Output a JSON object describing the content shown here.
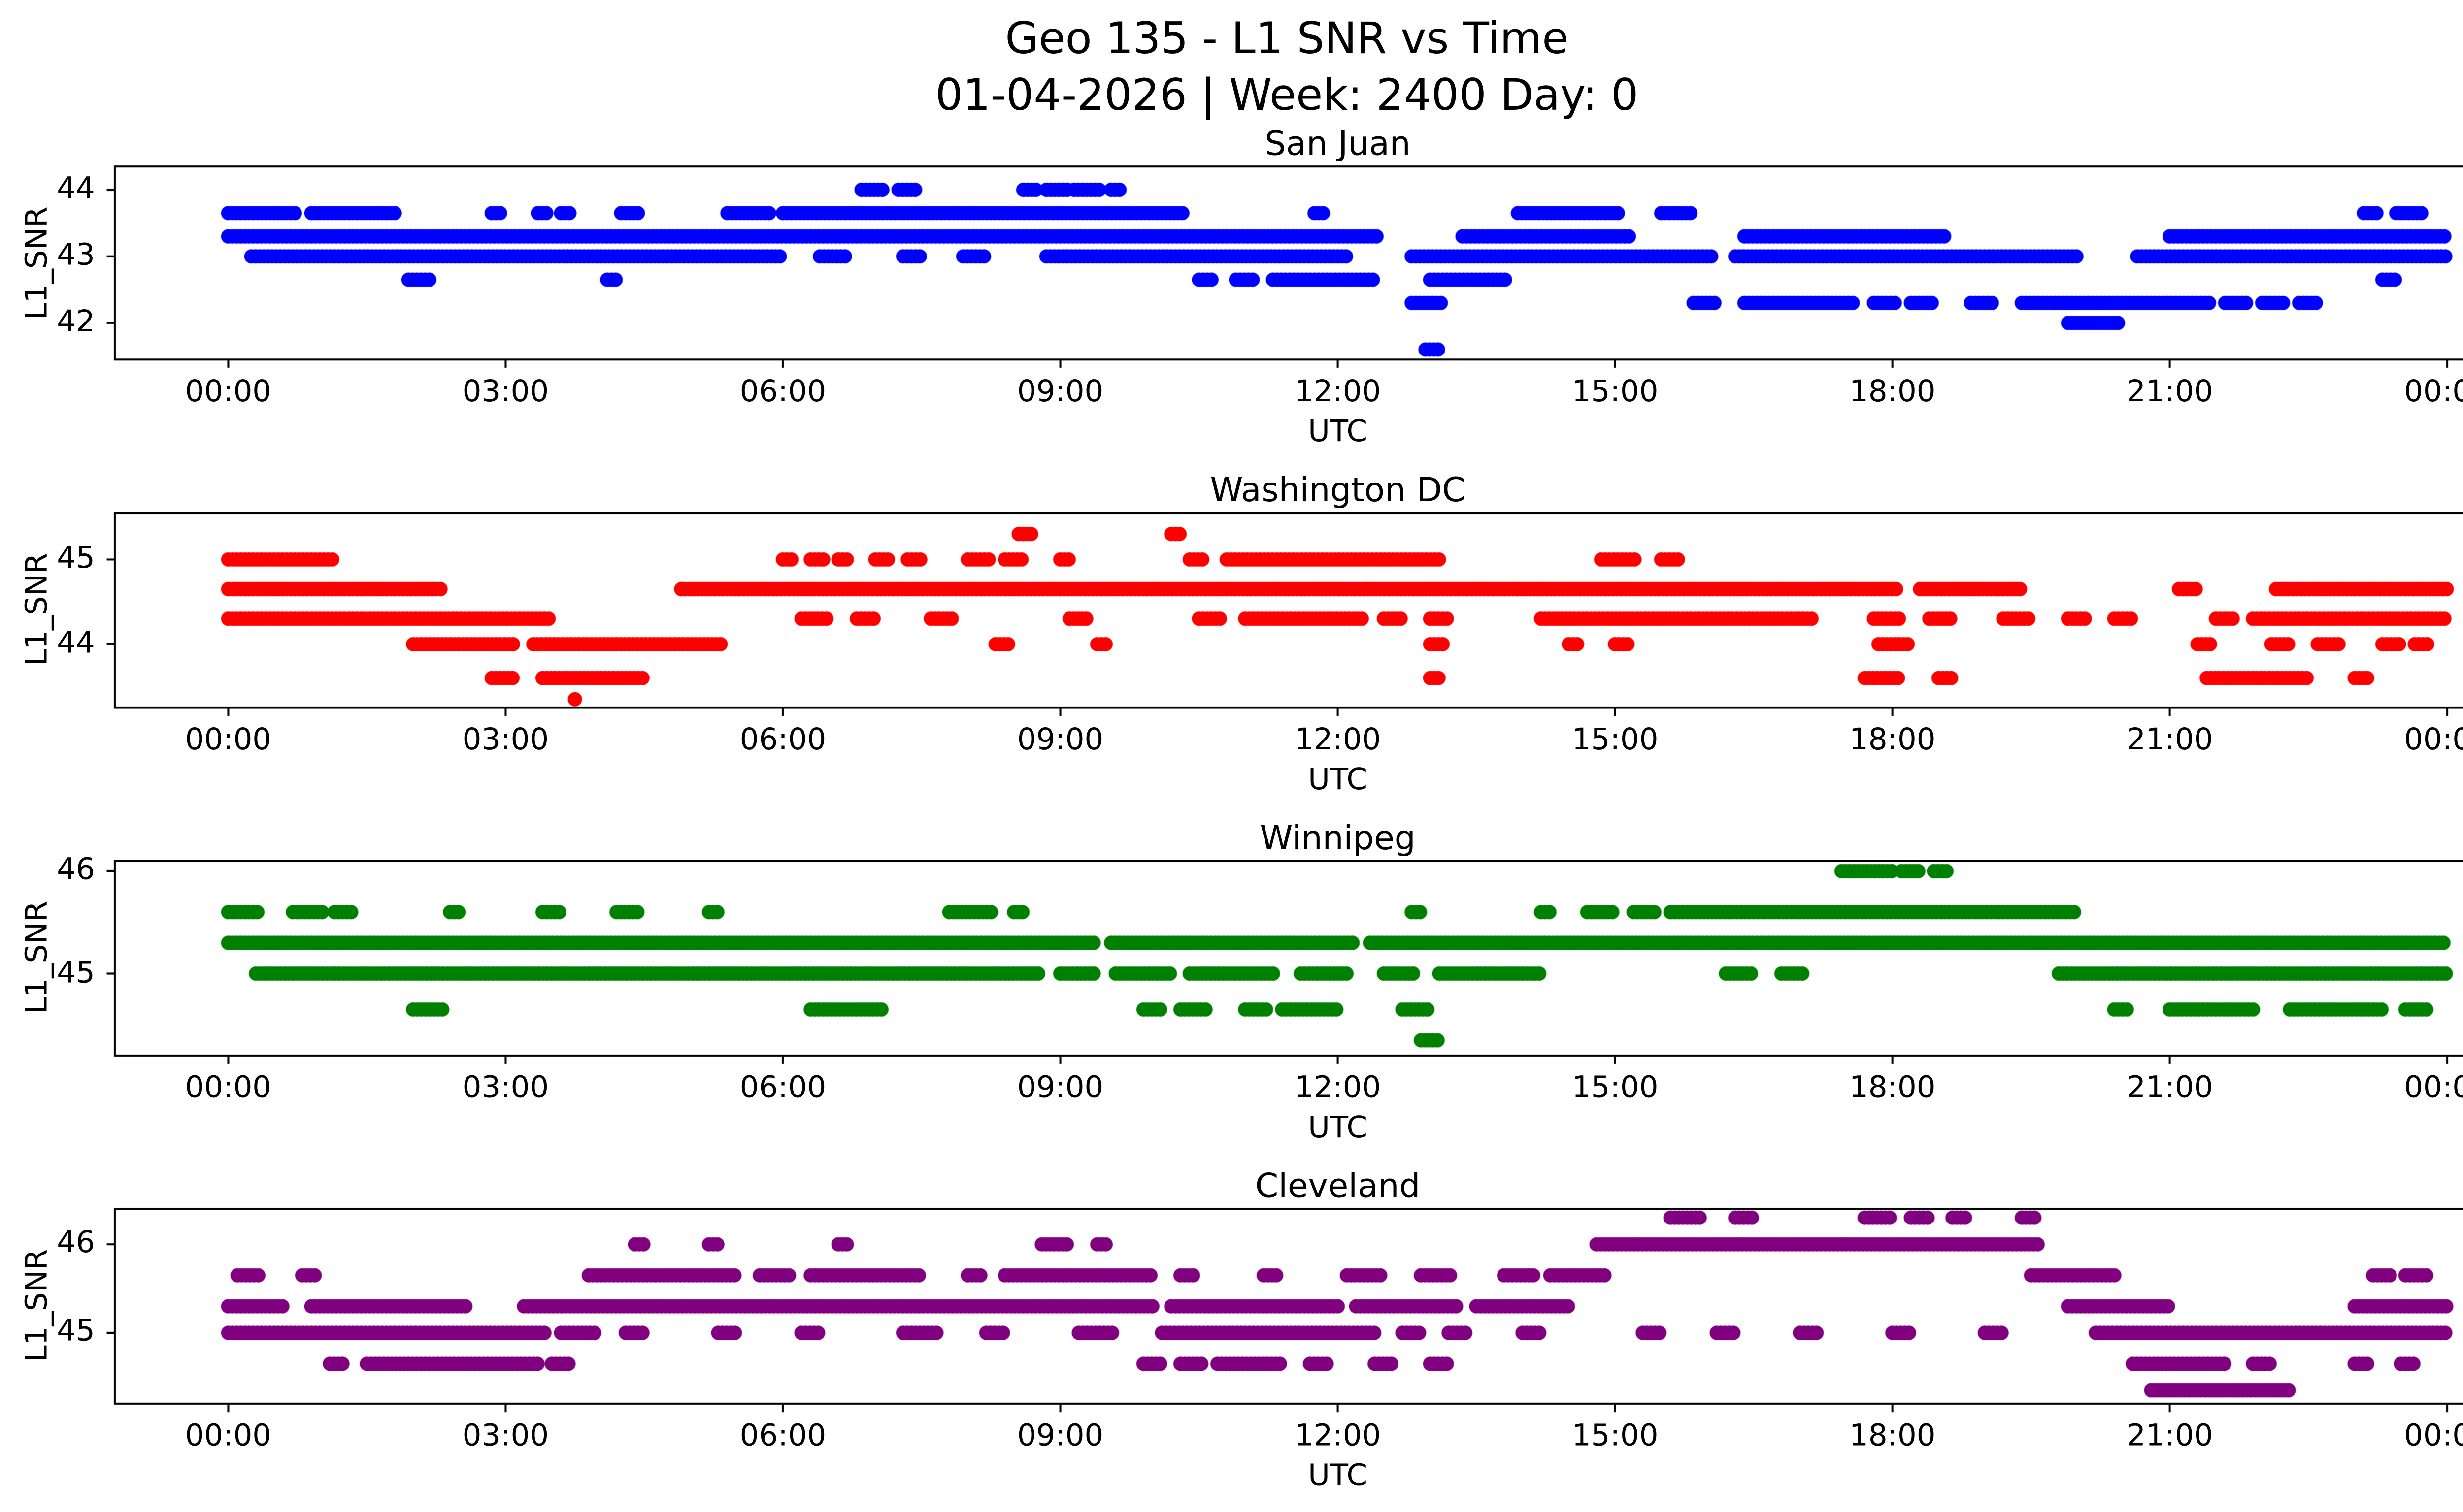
{
  "figure": {
    "title": "Geo 135 - L1 SNR vs Time",
    "subtitle": "01-04-2026 | Week: 2400 Day: 0"
  },
  "axes": {
    "xlabel": "UTC",
    "ylabel": "L1_SNR",
    "xticks": [
      "00:00",
      "03:00",
      "06:00",
      "09:00",
      "12:00",
      "15:00",
      "18:00",
      "21:00",
      "00:00"
    ],
    "xtick_hours": [
      0,
      3,
      6,
      9,
      12,
      15,
      18,
      21,
      24
    ]
  },
  "chart_data": [
    {
      "type": "scatter",
      "title": "San Juan",
      "color": "#0000ff",
      "xlabel": "UTC",
      "ylabel": "L1_SNR",
      "xlim": [
        -1.2,
        25.2
      ],
      "ylim": [
        41.45,
        44.35
      ],
      "yticks": [
        42,
        43,
        44
      ],
      "bands": [
        {
          "y": 44.0,
          "segments": [
            [
              6.85,
              7.1
            ],
            [
              7.25,
              7.45
            ],
            [
              8.6,
              8.75
            ],
            [
              8.85,
              9.1
            ],
            [
              9.15,
              9.45
            ],
            [
              9.55,
              9.65
            ]
          ]
        },
        {
          "y": 43.65,
          "segments": [
            [
              0.0,
              0.75
            ],
            [
              0.9,
              1.8
            ],
            [
              2.85,
              2.95
            ],
            [
              3.35,
              3.45
            ],
            [
              3.6,
              3.7
            ],
            [
              4.25,
              4.45
            ],
            [
              5.4,
              5.85
            ],
            [
              6.0,
              10.35
            ],
            [
              11.75,
              11.85
            ],
            [
              13.95,
              15.05
            ],
            [
              15.5,
              15.85
            ],
            [
              23.1,
              23.25
            ],
            [
              23.45,
              23.75
            ]
          ]
        },
        {
          "y": 43.3,
          "segments": [
            [
              0.0,
              12.45
            ],
            [
              13.35,
              15.15
            ],
            [
              16.4,
              18.6
            ],
            [
              21.0,
              24.0
            ]
          ]
        },
        {
          "y": 43.0,
          "segments": [
            [
              0.25,
              6.0
            ],
            [
              6.4,
              6.7
            ],
            [
              7.3,
              7.5
            ],
            [
              7.95,
              8.2
            ],
            [
              8.85,
              12.1
            ],
            [
              12.8,
              16.05
            ],
            [
              16.3,
              20.0
            ],
            [
              20.65,
              24.0
            ]
          ]
        },
        {
          "y": 42.65,
          "segments": [
            [
              1.95,
              2.2
            ],
            [
              4.1,
              4.2
            ],
            [
              10.5,
              10.65
            ],
            [
              10.9,
              11.1
            ],
            [
              11.3,
              12.4
            ],
            [
              13.0,
              13.85
            ],
            [
              23.3,
              23.45
            ]
          ]
        },
        {
          "y": 42.3,
          "segments": [
            [
              12.8,
              13.15
            ],
            [
              15.85,
              16.1
            ],
            [
              16.4,
              17.6
            ],
            [
              17.8,
              18.05
            ],
            [
              18.2,
              18.45
            ],
            [
              18.85,
              19.1
            ],
            [
              19.4,
              21.45
            ],
            [
              21.6,
              21.85
            ],
            [
              22.0,
              22.25
            ],
            [
              22.4,
              22.6
            ]
          ]
        },
        {
          "y": 42.0,
          "segments": [
            [
              19.9,
              20.45
            ]
          ]
        },
        {
          "y": 41.6,
          "segments": [
            [
              12.95,
              13.1
            ]
          ]
        }
      ],
      "points": []
    },
    {
      "type": "scatter",
      "title": "Washington DC",
      "color": "#ff0000",
      "xlabel": "UTC",
      "ylabel": "L1_SNR",
      "xlim": [
        -1.2,
        25.2
      ],
      "ylim": [
        43.25,
        45.55
      ],
      "yticks": [
        44,
        45
      ],
      "bands": [
        {
          "y": 45.3,
          "segments": [
            [
              8.55,
              8.7
            ],
            [
              10.2,
              10.3
            ]
          ]
        },
        {
          "y": 45.0,
          "segments": [
            [
              0.0,
              1.15
            ],
            [
              6.0,
              6.1
            ],
            [
              6.3,
              6.45
            ],
            [
              6.6,
              6.7
            ],
            [
              7.0,
              7.15
            ],
            [
              7.35,
              7.5
            ],
            [
              8.0,
              8.25
            ],
            [
              8.4,
              8.6
            ],
            [
              9.0,
              9.1
            ],
            [
              10.4,
              10.55
            ],
            [
              10.8,
              13.1
            ],
            [
              14.85,
              15.25
            ],
            [
              15.5,
              15.7
            ]
          ]
        },
        {
          "y": 44.65,
          "segments": [
            [
              0.0,
              2.3
            ],
            [
              4.9,
              18.05
            ],
            [
              18.3,
              19.4
            ],
            [
              21.1,
              21.3
            ],
            [
              22.15,
              24.0
            ]
          ]
        },
        {
          "y": 44.3,
          "segments": [
            [
              0.0,
              3.5
            ],
            [
              6.2,
              6.5
            ],
            [
              6.8,
              7.0
            ],
            [
              7.6,
              7.85
            ],
            [
              9.1,
              9.3
            ],
            [
              10.5,
              10.75
            ],
            [
              11.0,
              12.3
            ],
            [
              12.5,
              12.7
            ],
            [
              13.0,
              13.2
            ],
            [
              14.2,
              17.15
            ],
            [
              17.8,
              18.1
            ],
            [
              18.4,
              18.65
            ],
            [
              19.2,
              19.5
            ],
            [
              19.9,
              20.1
            ],
            [
              20.4,
              20.6
            ],
            [
              21.5,
              21.7
            ],
            [
              21.9,
              24.0
            ]
          ]
        },
        {
          "y": 44.0,
          "segments": [
            [
              2.0,
              3.1
            ],
            [
              3.3,
              5.35
            ],
            [
              8.3,
              8.45
            ],
            [
              9.4,
              9.5
            ],
            [
              13.0,
              13.15
            ],
            [
              14.5,
              14.6
            ],
            [
              15.0,
              15.15
            ],
            [
              17.85,
              18.2
            ],
            [
              21.3,
              21.45
            ],
            [
              22.1,
              22.3
            ],
            [
              22.6,
              22.85
            ],
            [
              23.3,
              23.5
            ],
            [
              23.65,
              23.8
            ]
          ]
        },
        {
          "y": 43.6,
          "segments": [
            [
              2.85,
              3.1
            ],
            [
              3.4,
              4.5
            ],
            [
              13.0,
              13.1
            ],
            [
              17.7,
              18.1
            ],
            [
              18.5,
              18.65
            ],
            [
              21.4,
              22.5
            ],
            [
              23.0,
              23.15
            ]
          ]
        }
      ],
      "points": [
        [
          3.75,
          43.35
        ]
      ]
    },
    {
      "type": "scatter",
      "title": "Winnipeg",
      "color": "#008000",
      "xlabel": "UTC",
      "ylabel": "L1_SNR",
      "xlim": [
        -1.2,
        25.2
      ],
      "ylim": [
        44.2,
        46.1
      ],
      "yticks": [
        45,
        46
      ],
      "bands": [
        {
          "y": 46.0,
          "segments": [
            [
              17.45,
              18.0
            ],
            [
              18.1,
              18.3
            ],
            [
              18.45,
              18.6
            ]
          ]
        },
        {
          "y": 45.6,
          "segments": [
            [
              0.0,
              0.35
            ],
            [
              0.7,
              1.05
            ],
            [
              1.15,
              1.35
            ],
            [
              2.4,
              2.5
            ],
            [
              3.4,
              3.6
            ],
            [
              4.2,
              4.45
            ],
            [
              5.2,
              5.3
            ],
            [
              7.8,
              8.25
            ],
            [
              8.5,
              8.6
            ],
            [
              12.8,
              12.9
            ],
            [
              14.2,
              14.3
            ],
            [
              14.7,
              15.0
            ],
            [
              15.2,
              15.45
            ],
            [
              15.6,
              20.0
            ]
          ]
        },
        {
          "y": 45.3,
          "segments": [
            [
              0.0,
              9.4
            ],
            [
              9.55,
              12.2
            ],
            [
              12.35,
              24.0
            ]
          ]
        },
        {
          "y": 45.0,
          "segments": [
            [
              0.3,
              8.8
            ],
            [
              9.0,
              9.4
            ],
            [
              9.6,
              10.2
            ],
            [
              10.4,
              11.3
            ],
            [
              11.6,
              12.1
            ],
            [
              12.5,
              12.85
            ],
            [
              13.1,
              14.2
            ],
            [
              16.2,
              16.5
            ],
            [
              16.8,
              17.05
            ],
            [
              19.8,
              24.0
            ]
          ]
        },
        {
          "y": 44.65,
          "segments": [
            [
              2.0,
              2.35
            ],
            [
              6.3,
              7.1
            ],
            [
              9.9,
              10.1
            ],
            [
              10.3,
              10.6
            ],
            [
              11.0,
              11.25
            ],
            [
              11.4,
              12.0
            ],
            [
              12.7,
              13.0
            ],
            [
              20.4,
              20.55
            ],
            [
              21.0,
              21.9
            ],
            [
              22.3,
              23.3
            ],
            [
              23.55,
              23.8
            ]
          ]
        },
        {
          "y": 44.35,
          "segments": [
            [
              12.9,
              13.1
            ]
          ]
        }
      ],
      "points": []
    },
    {
      "type": "scatter",
      "title": "Cleveland",
      "color": "#800080",
      "xlabel": "UTC",
      "ylabel": "L1_SNR",
      "xlim": [
        -1.2,
        25.2
      ],
      "ylim": [
        44.2,
        46.4
      ],
      "yticks": [
        45,
        46
      ],
      "bands": [
        {
          "y": 46.3,
          "segments": [
            [
              15.6,
              15.95
            ],
            [
              16.3,
              16.5
            ],
            [
              17.7,
              18.0
            ],
            [
              18.2,
              18.4
            ],
            [
              18.65,
              18.8
            ],
            [
              19.4,
              19.55
            ]
          ]
        },
        {
          "y": 46.0,
          "segments": [
            [
              4.4,
              4.5
            ],
            [
              5.2,
              5.3
            ],
            [
              6.6,
              6.7
            ],
            [
              8.8,
              9.1
            ],
            [
              9.4,
              9.5
            ],
            [
              14.8,
              19.6
            ]
          ]
        },
        {
          "y": 45.65,
          "segments": [
            [
              0.1,
              0.35
            ],
            [
              0.8,
              0.95
            ],
            [
              3.9,
              5.5
            ],
            [
              5.75,
              6.1
            ],
            [
              6.3,
              7.5
            ],
            [
              8.0,
              8.15
            ],
            [
              8.4,
              10.0
            ],
            [
              10.3,
              10.45
            ],
            [
              11.2,
              11.35
            ],
            [
              12.1,
              12.5
            ],
            [
              12.9,
              13.25
            ],
            [
              13.8,
              14.15
            ],
            [
              14.3,
              14.9
            ],
            [
              19.5,
              20.4
            ],
            [
              23.2,
              23.4
            ],
            [
              23.55,
              23.8
            ]
          ]
        },
        {
          "y": 45.3,
          "segments": [
            [
              0.0,
              0.6
            ],
            [
              0.9,
              2.6
            ],
            [
              3.2,
              10.0
            ],
            [
              10.2,
              12.0
            ],
            [
              12.2,
              13.3
            ],
            [
              13.5,
              14.5
            ],
            [
              19.9,
              21.0
            ],
            [
              23.0,
              24.0
            ]
          ]
        },
        {
          "y": 45.0,
          "segments": [
            [
              0.0,
              3.45
            ],
            [
              3.6,
              4.0
            ],
            [
              4.3,
              4.5
            ],
            [
              5.3,
              5.5
            ],
            [
              6.2,
              6.4
            ],
            [
              7.3,
              7.7
            ],
            [
              8.2,
              8.4
            ],
            [
              9.2,
              9.6
            ],
            [
              10.1,
              12.4
            ],
            [
              12.7,
              12.9
            ],
            [
              13.2,
              13.4
            ],
            [
              14.0,
              14.2
            ],
            [
              15.3,
              15.5
            ],
            [
              16.1,
              16.3
            ],
            [
              17.0,
              17.2
            ],
            [
              18.0,
              18.2
            ],
            [
              19.0,
              19.2
            ],
            [
              20.2,
              24.0
            ]
          ]
        },
        {
          "y": 44.65,
          "segments": [
            [
              1.1,
              1.25
            ],
            [
              1.5,
              3.35
            ],
            [
              3.5,
              3.7
            ],
            [
              9.9,
              10.1
            ],
            [
              10.3,
              10.55
            ],
            [
              10.7,
              11.4
            ],
            [
              11.7,
              11.9
            ],
            [
              12.4,
              12.6
            ],
            [
              13.0,
              13.2
            ],
            [
              20.6,
              21.6
            ],
            [
              21.9,
              22.1
            ],
            [
              23.0,
              23.15
            ],
            [
              23.5,
              23.65
            ]
          ]
        },
        {
          "y": 44.35,
          "segments": [
            [
              20.8,
              22.3
            ]
          ]
        }
      ],
      "points": []
    }
  ]
}
